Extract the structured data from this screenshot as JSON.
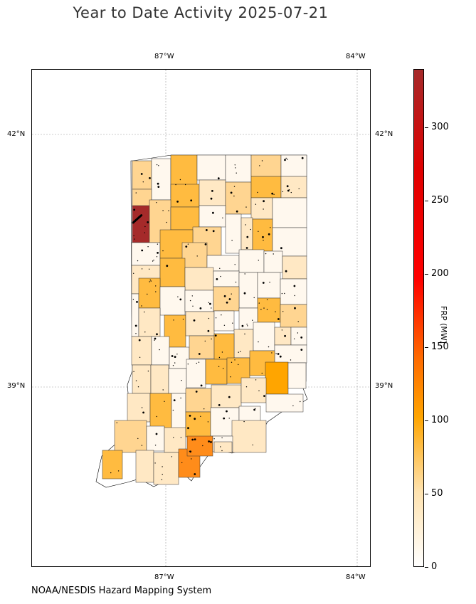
{
  "title": "Year to Date Activity 2025-07-21",
  "credit": "NOAA/NESDIS Hazard Mapping System",
  "axes": {
    "lon_ticks": [
      "87°W",
      "84°W"
    ],
    "lat_ticks": [
      "42°N",
      "39°N"
    ]
  },
  "colorbar": {
    "label": "FRP (MW)",
    "ticks": [
      "0",
      "50",
      "100",
      "150",
      "200",
      "250",
      "300"
    ],
    "colors": {
      "low": "#ffffff",
      "mid": "#ffa500",
      "high": "#ff0000",
      "max": "#a52a2a"
    }
  },
  "map_colors": {
    "c0": "#fff8ee",
    "c1": "#ffe8c4",
    "c2": "#ffd591",
    "c3": "#ffbb40",
    "c4": "#ffa500",
    "c5": "#ff8c1a",
    "c6": "#a52a2a"
  }
}
